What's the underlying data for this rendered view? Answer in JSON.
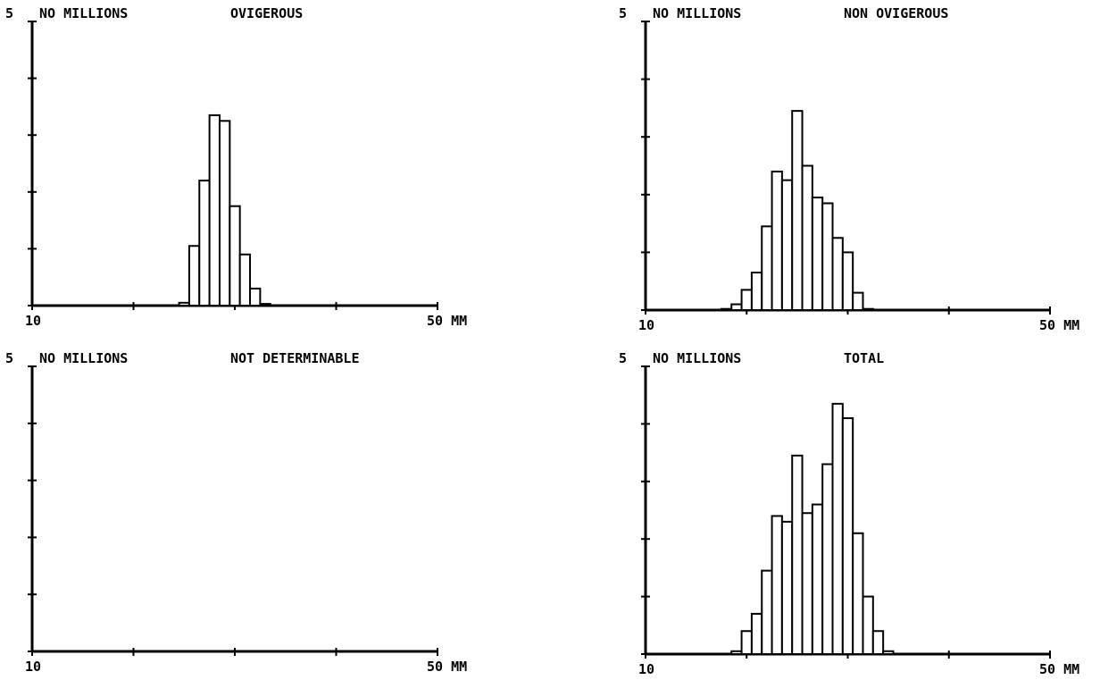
{
  "chart_data": [
    {
      "type": "bar",
      "title": "OVIGEROUS",
      "ylabel": "NO MILLIONS",
      "ymax_label": "5",
      "x_tick_labels": [
        "10",
        "50 MM"
      ],
      "xlim": [
        10,
        50
      ],
      "ylim": [
        0,
        5
      ],
      "bin_width_mm": 1,
      "x": [
        25,
        26,
        27,
        28,
        29,
        30,
        31,
        32,
        33
      ],
      "values": [
        0.05,
        1.05,
        2.2,
        3.35,
        3.25,
        1.75,
        0.9,
        0.3,
        0.03
      ]
    },
    {
      "type": "bar",
      "title": "NON OVIGEROUS",
      "ylabel": "NO MILLIONS",
      "ymax_label": "5",
      "x_tick_labels": [
        "10",
        "50 MM"
      ],
      "xlim": [
        10,
        50
      ],
      "ylim": [
        0,
        5
      ],
      "bin_width_mm": 1,
      "x": [
        18,
        19,
        20,
        21,
        22,
        23,
        24,
        25,
        26,
        27,
        28,
        29,
        30,
        31,
        32
      ],
      "values": [
        0.02,
        0.1,
        0.35,
        0.65,
        1.45,
        2.4,
        2.25,
        3.45,
        2.5,
        1.95,
        1.85,
        1.25,
        1.0,
        0.3,
        0.02
      ]
    },
    {
      "type": "bar",
      "title": "NOT DETERMINABLE",
      "ylabel": "NO MILLIONS",
      "ymax_label": "5",
      "x_tick_labels": [
        "10",
        "50 MM"
      ],
      "xlim": [
        10,
        50
      ],
      "ylim": [
        0,
        5
      ],
      "bin_width_mm": 1,
      "x": [],
      "values": []
    },
    {
      "type": "bar",
      "title": "TOTAL",
      "ylabel": "NO MILLIONS",
      "ymax_label": "5",
      "x_tick_labels": [
        "10",
        "50 MM"
      ],
      "xlim": [
        10,
        50
      ],
      "ylim": [
        0,
        5
      ],
      "bin_width_mm": 1,
      "x": [
        19,
        20,
        21,
        22,
        23,
        24,
        25,
        26,
        27,
        28,
        29,
        30,
        31,
        32,
        33,
        34
      ],
      "values": [
        0.05,
        0.4,
        0.7,
        1.45,
        2.4,
        2.3,
        3.45,
        2.45,
        2.6,
        3.3,
        4.35,
        4.1,
        2.1,
        1.0,
        0.4,
        0.05
      ]
    }
  ]
}
